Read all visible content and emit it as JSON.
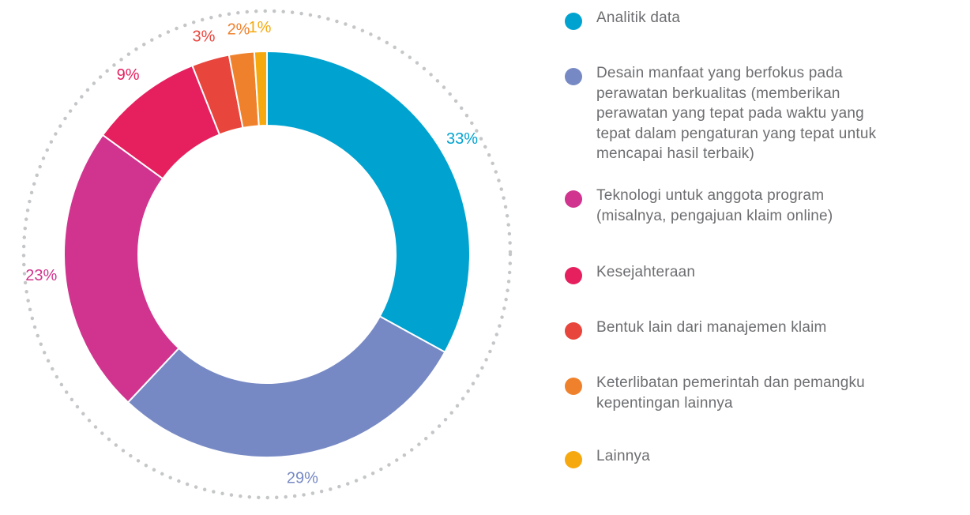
{
  "chart_data": {
    "type": "pie",
    "variant": "donut",
    "title": "",
    "legend_position": "right",
    "slices": [
      {
        "label": "Analitik data",
        "value": 33,
        "display": "33%",
        "color": "#00a3d0"
      },
      {
        "label": "Desain manfaat yang berfokus pada perawatan berkualitas (memberikan perawatan yang tepat pada waktu yang tepat dalam pengaturan yang tepat untuk mencapai hasil terbaik)",
        "value": 29,
        "display": "29%",
        "color": "#7789c4"
      },
      {
        "label": "Teknologi untuk anggota program (misalnya, pengajuan klaim online)",
        "value": 23,
        "display": "23%",
        "color": "#d0348e"
      },
      {
        "label": "Kesejahteraan",
        "value": 9,
        "display": "9%",
        "color": "#e61f5e"
      },
      {
        "label": "Bentuk lain dari manajemen klaim",
        "value": 3,
        "display": "3%",
        "color": "#e8453c"
      },
      {
        "label": "Keterlibatan pemerintah dan pemangku kepentingan lainnya",
        "value": 2,
        "display": "2%",
        "color": "#f0812c"
      },
      {
        "label": "Lainnya",
        "value": 1,
        "display": "1%",
        "color": "#f6a90f"
      }
    ]
  }
}
